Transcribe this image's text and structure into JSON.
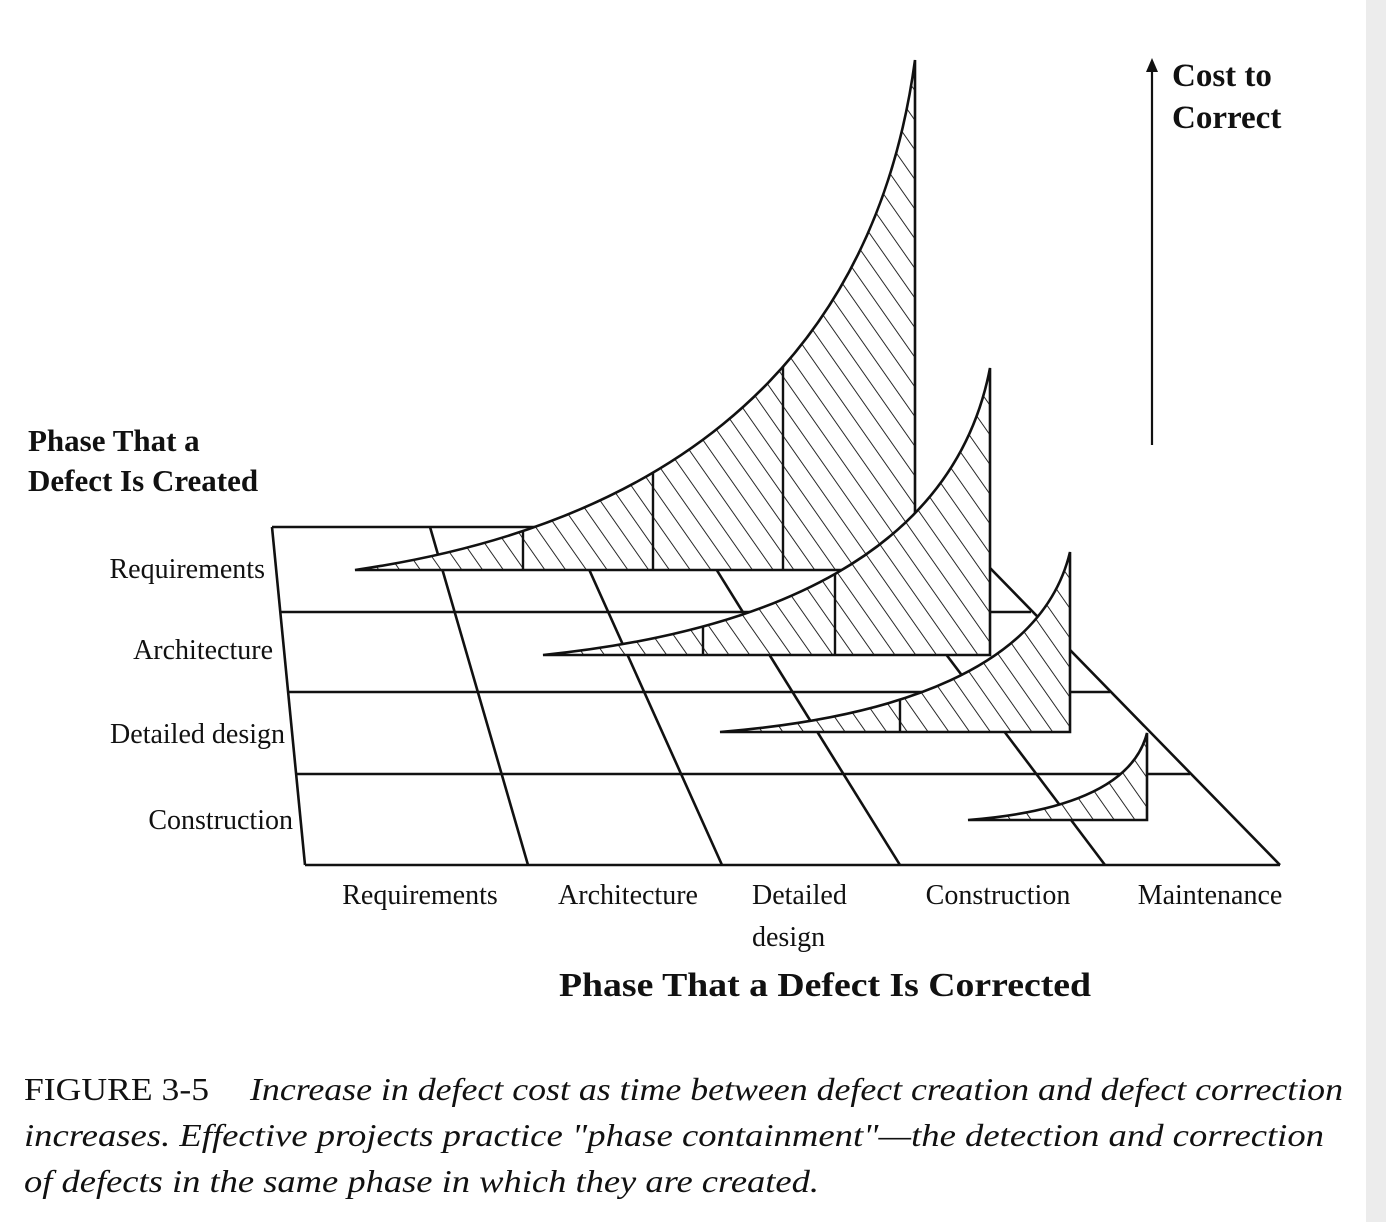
{
  "axis_vertical": {
    "label_line1": "Cost to",
    "label_line2": "Correct"
  },
  "axis_created": {
    "title_line1": "Phase That a",
    "title_line2": "Defect Is Created",
    "rows": [
      "Requirements",
      "Architecture",
      "Detailed design",
      "Construction"
    ]
  },
  "axis_corrected": {
    "title": "Phase That a Defect Is Corrected",
    "columns": [
      "Requirements",
      "Architecture",
      "Detailed",
      "design",
      "Construction",
      "Maintenance"
    ]
  },
  "caption": {
    "figure_label": "FIGURE 3-5",
    "line1": "Increase in defect cost as time between defect creation and defect correction",
    "line2": "increases. Effective projects practice \"phase containment\"—the detection and correction",
    "line3": "of defects in the same phase in which they are created."
  },
  "colors": {
    "ink": "#111111",
    "paper": "#ffffff"
  }
}
